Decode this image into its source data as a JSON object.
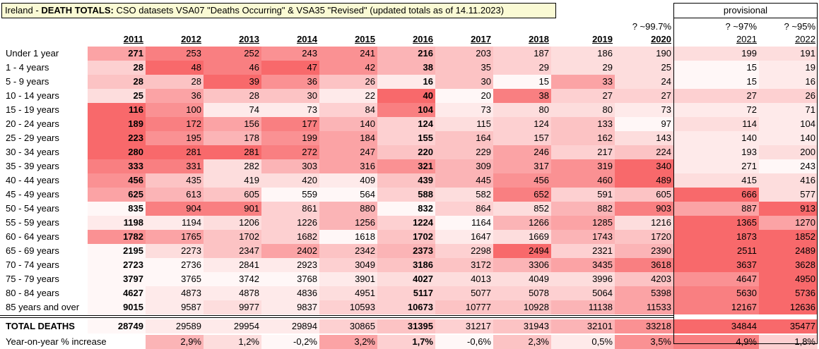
{
  "title": {
    "prefix": "Ireland - ",
    "bold": "DEATH TOTALS:",
    "rest": " CSO datasets VSA07 \"Deaths Occurring\" & VSA35 \"Revised\" (updated totals as of 14.11.2023)"
  },
  "provisional_label": "provisional",
  "completeness": {
    "2020": "? ~99.7%",
    "2021": "? ~97%",
    "2022": "? ~95%"
  },
  "years": [
    "2011",
    "2012",
    "2013",
    "2014",
    "2015",
    "2016",
    "2017",
    "2018",
    "2019",
    "2020",
    "2021",
    "2022"
  ],
  "bold_columns": [
    "2011",
    "2016"
  ],
  "rows": [
    {
      "label": "Under 1 year",
      "values": [
        "271",
        "253",
        "252",
        "243",
        "241",
        "216",
        "203",
        "187",
        "186",
        "190",
        "199",
        "191"
      ],
      "shades": [
        "c4",
        "c2",
        "c2",
        "c3",
        "c3",
        "c5",
        "c6",
        "c7",
        "c8",
        "c8",
        "c8",
        "c8"
      ]
    },
    {
      "label": "1 - 4 years",
      "values": [
        "28",
        "48",
        "46",
        "47",
        "42",
        "38",
        "35",
        "29",
        "29",
        "25",
        "15",
        "19"
      ],
      "shades": [
        "c7",
        "c1",
        "c2",
        "c1",
        "c3",
        "c5",
        "c6",
        "c7",
        "c8",
        "c8",
        "c10",
        "c9"
      ]
    },
    {
      "label": "5 - 9 years",
      "values": [
        "28",
        "28",
        "39",
        "36",
        "26",
        "16",
        "30",
        "15",
        "33",
        "24",
        "15",
        "16"
      ],
      "shades": [
        "c6",
        "c6",
        "c1",
        "c3",
        "c6",
        "c9",
        "c6",
        "c10",
        "c4",
        "c8",
        "c10",
        "c9"
      ]
    },
    {
      "label": "10 - 14 years",
      "values": [
        "25",
        "36",
        "28",
        "30",
        "22",
        "40",
        "20",
        "38",
        "27",
        "27",
        "27",
        "26"
      ],
      "shades": [
        "c8",
        "c4",
        "c6",
        "c6",
        "c9",
        "c1",
        "c10",
        "c2",
        "c7",
        "c7",
        "c7",
        "c7"
      ]
    },
    {
      "label": "15 - 19 years",
      "values": [
        "116",
        "100",
        "74",
        "73",
        "84",
        "104",
        "73",
        "80",
        "80",
        "73",
        "72",
        "71"
      ],
      "shades": [
        "c1",
        "c3",
        "c9",
        "c9",
        "c7",
        "c2",
        "c9",
        "c8",
        "c8",
        "c9",
        "c9",
        "c9"
      ]
    },
    {
      "label": "20 - 24 years",
      "values": [
        "189",
        "172",
        "156",
        "177",
        "140",
        "124",
        "115",
        "124",
        "133",
        "97",
        "114",
        "104"
      ],
      "shades": [
        "c1",
        "c2",
        "c4",
        "c2",
        "c5",
        "c7",
        "c8",
        "c7",
        "c6",
        "c10",
        "c8",
        "c9"
      ]
    },
    {
      "label": "25 - 29 years",
      "values": [
        "223",
        "195",
        "178",
        "199",
        "184",
        "155",
        "164",
        "157",
        "162",
        "143",
        "140",
        "140"
      ],
      "shades": [
        "c1",
        "c3",
        "c5",
        "c3",
        "c4",
        "c7",
        "c6",
        "c7",
        "c6",
        "c8",
        "c9",
        "c9"
      ]
    },
    {
      "label": "30 - 34 years",
      "values": [
        "280",
        "281",
        "281",
        "272",
        "247",
        "220",
        "229",
        "246",
        "217",
        "224",
        "193",
        "200"
      ],
      "shades": [
        "c1",
        "c1",
        "c1",
        "c2",
        "c4",
        "c6",
        "c6",
        "c4",
        "c7",
        "c6",
        "c9",
        "c8"
      ]
    },
    {
      "label": "35 - 39 years",
      "values": [
        "333",
        "331",
        "282",
        "303",
        "316",
        "321",
        "309",
        "317",
        "319",
        "340",
        "271",
        "243"
      ],
      "shades": [
        "c2",
        "c2",
        "c8",
        "c5",
        "c4",
        "c3",
        "c5",
        "c4",
        "c3",
        "c1",
        "c9",
        "c10"
      ]
    },
    {
      "label": "40 - 44 years",
      "values": [
        "456",
        "435",
        "419",
        "420",
        "409",
        "439",
        "445",
        "456",
        "460",
        "489",
        "415",
        "416"
      ],
      "shades": [
        "c3",
        "c6",
        "c8",
        "c8",
        "c9",
        "c6",
        "c5",
        "c3",
        "c3",
        "c1",
        "c8",
        "c8"
      ]
    },
    {
      "label": "45 - 49 years",
      "values": [
        "625",
        "613",
        "605",
        "559",
        "564",
        "588",
        "582",
        "652",
        "591",
        "605",
        "666",
        "577"
      ],
      "shades": [
        "c4",
        "c5",
        "c6",
        "c10",
        "c10",
        "c7",
        "c8",
        "c2",
        "c7",
        "c6",
        "c1",
        "c8"
      ]
    },
    {
      "label": "50 - 54 years",
      "values": [
        "835",
        "904",
        "901",
        "861",
        "880",
        "832",
        "864",
        "852",
        "882",
        "903",
        "887",
        "913"
      ],
      "shades": [
        "c10",
        "c2",
        "c2",
        "c7",
        "c5",
        "c10",
        "c7",
        "c8",
        "c5",
        "c2",
        "c4",
        "c1"
      ]
    },
    {
      "label": "55 - 59 years",
      "values": [
        "1198",
        "1194",
        "1206",
        "1226",
        "1256",
        "1224",
        "1164",
        "1266",
        "1285",
        "1216",
        "1365",
        "1270"
      ],
      "shades": [
        "c9",
        "c9",
        "c8",
        "c7",
        "c5",
        "c7",
        "c10",
        "c5",
        "c4",
        "c8",
        "c1",
        "c4"
      ]
    },
    {
      "label": "60 - 64 years",
      "values": [
        "1782",
        "1765",
        "1702",
        "1682",
        "1618",
        "1702",
        "1647",
        "1669",
        "1743",
        "1720",
        "1873",
        "1852"
      ],
      "shades": [
        "c3",
        "c4",
        "c6",
        "c7",
        "c10",
        "c6",
        "c9",
        "c8",
        "c5",
        "c6",
        "c1",
        "c1"
      ]
    },
    {
      "label": "65 - 69 years",
      "values": [
        "2195",
        "2273",
        "2347",
        "2402",
        "2342",
        "2373",
        "2298",
        "2494",
        "2321",
        "2390",
        "2511",
        "2489"
      ],
      "shades": [
        "c10",
        "c8",
        "c6",
        "c4",
        "c6",
        "c5",
        "c7",
        "c1",
        "c7",
        "c5",
        "c1",
        "c1"
      ]
    },
    {
      "label": "70 - 74 years",
      "values": [
        "2723",
        "2736",
        "2841",
        "2923",
        "3049",
        "3186",
        "3172",
        "3306",
        "3435",
        "3618",
        "3637",
        "3628"
      ],
      "shades": [
        "c10",
        "c10",
        "c9",
        "c9",
        "c7",
        "c6",
        "c6",
        "c5",
        "c4",
        "c2",
        "c1",
        "c1"
      ]
    },
    {
      "label": "75 - 79 years",
      "values": [
        "3797",
        "3765",
        "3742",
        "3768",
        "3901",
        "4027",
        "4013",
        "4049",
        "3996",
        "4203",
        "4647",
        "4950"
      ],
      "shades": [
        "c10",
        "c10",
        "c10",
        "c10",
        "c9",
        "c8",
        "c8",
        "c8",
        "c8",
        "c6",
        "c3",
        "c1"
      ]
    },
    {
      "label": "80 - 84 years",
      "values": [
        "4627",
        "4873",
        "4878",
        "4836",
        "4951",
        "5117",
        "5077",
        "5078",
        "5064",
        "5398",
        "5630",
        "5736"
      ],
      "shades": [
        "c10",
        "c9",
        "c9",
        "c9",
        "c8",
        "c7",
        "c7",
        "c7",
        "c7",
        "c4",
        "c2",
        "c1"
      ]
    },
    {
      "label": "85 years and over",
      "values": [
        "9015",
        "9587",
        "9977",
        "9837",
        "10593",
        "10673",
        "10777",
        "10928",
        "11138",
        "11533",
        "12167",
        "12636"
      ],
      "shades": [
        "c10",
        "c9",
        "c8",
        "c9",
        "c7",
        "c7",
        "c6",
        "c6",
        "c5",
        "c4",
        "c2",
        "c1"
      ]
    }
  ],
  "total": {
    "label": "TOTAL DEATHS",
    "values": [
      "28749",
      "29589",
      "29954",
      "29894",
      "30865",
      "31395",
      "31217",
      "31943",
      "32101",
      "33218",
      "34844",
      "35477"
    ],
    "shades": [
      "c10",
      "c9",
      "c9",
      "c9",
      "c7",
      "c6",
      "c7",
      "c6",
      "c5",
      "c3",
      "c1",
      "c1"
    ]
  },
  "yoy": {
    "label": "Year-on-year % increase",
    "values": [
      "",
      "2,9%",
      "1,2%",
      "-0,2%",
      "3,2%",
      "1,7%",
      "-0,6%",
      "2,3%",
      "0,5%",
      "3,5%",
      "4,9%",
      "1,8%"
    ],
    "shades": [
      "white",
      "c5",
      "c8",
      "c10",
      "c4",
      "c7",
      "c10",
      "c6",
      "c9",
      "c3",
      "c2",
      "c7"
    ]
  },
  "colors": {
    "c1": "#f8696b",
    "c2": "#f97f81",
    "c3": "#fa9193",
    "c4": "#fba3a5",
    "c5": "#fbb4b6",
    "c6": "#fcc3c4",
    "c7": "#fdd0d1",
    "c8": "#fddddd",
    "c9": "#feeaea",
    "c10": "#fff7f7",
    "white": "#ffffff"
  }
}
